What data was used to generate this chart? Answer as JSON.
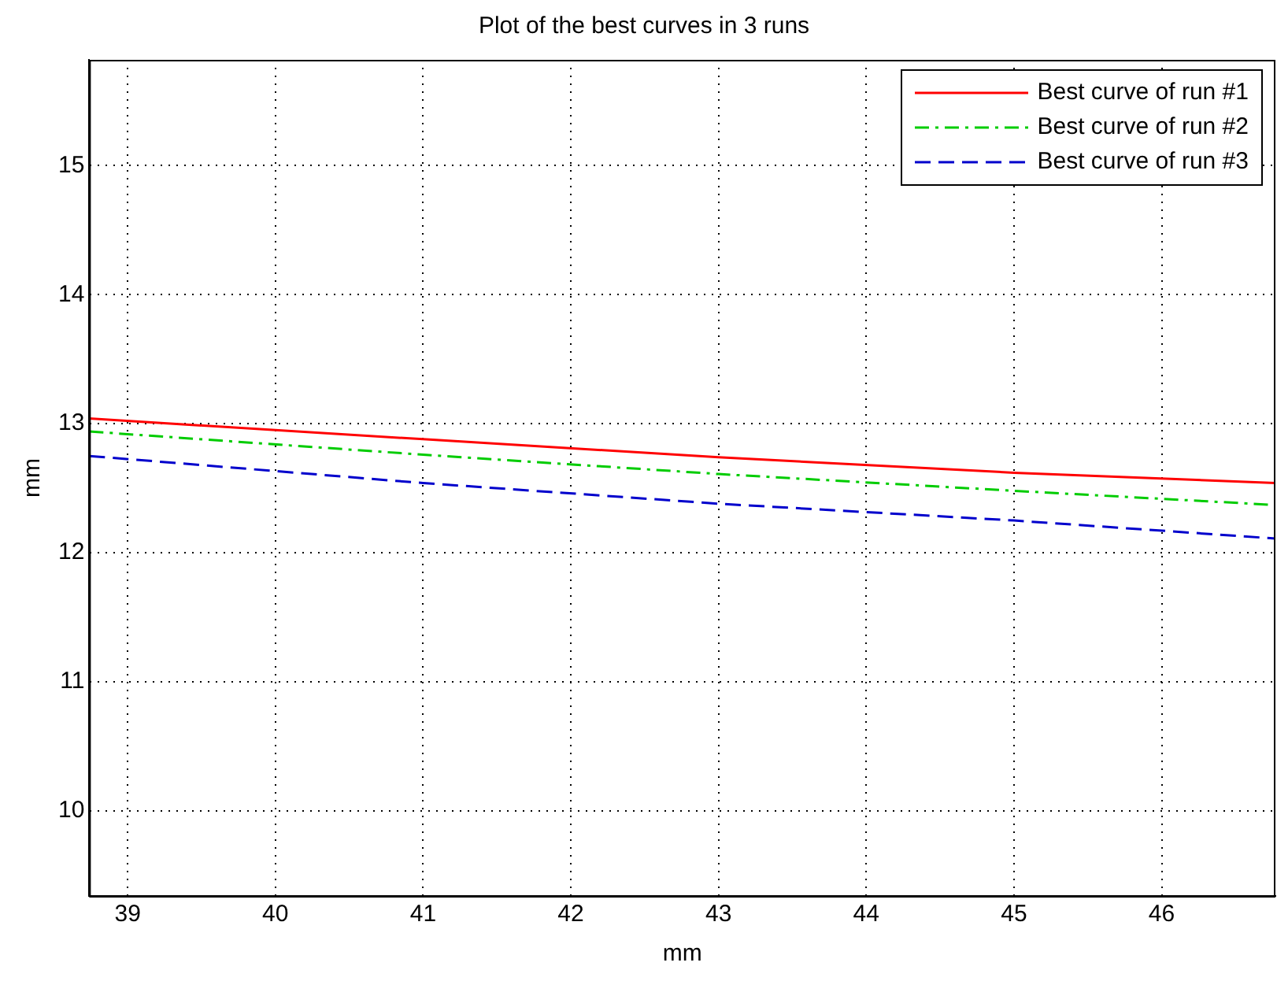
{
  "chart_data": {
    "type": "line",
    "title": "Plot of the best curves in 3 runs",
    "xlabel": "mm",
    "ylabel": "mm",
    "xlim": [
      38.74,
      46.77
    ],
    "xticks": [
      39,
      40,
      41,
      42,
      43,
      44,
      45,
      46
    ],
    "ylim": [
      9.34,
      15.82
    ],
    "yticks": [
      10,
      11,
      12,
      13,
      14,
      15
    ],
    "grid": true,
    "legend": "top right",
    "marker": "none",
    "series": [
      {
        "name": "Best curve of run #1",
        "color": "#ff0000",
        "line_style": "solid",
        "x": [
          38.74,
          41,
          43,
          45,
          46.77
        ],
        "values": [
          13.04,
          12.88,
          12.74,
          12.62,
          12.54
        ]
      },
      {
        "name": "Best curve of run #2",
        "color": "#00cc00",
        "line_style": "dashdot",
        "x": [
          38.74,
          41,
          43,
          45,
          46.77
        ],
        "values": [
          12.94,
          12.76,
          12.61,
          12.48,
          12.37
        ]
      },
      {
        "name": "Best curve of run #3",
        "color": "#0000cc",
        "line_style": "dashed",
        "x": [
          38.74,
          41,
          43,
          45,
          46.77
        ],
        "values": [
          12.75,
          12.54,
          12.38,
          12.25,
          12.11
        ]
      }
    ]
  }
}
